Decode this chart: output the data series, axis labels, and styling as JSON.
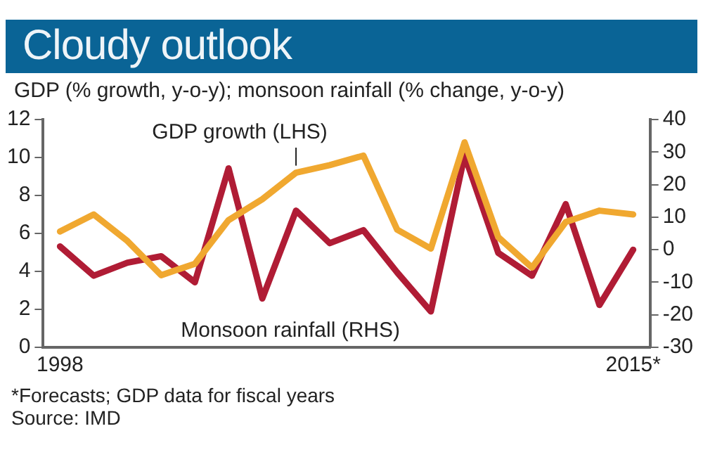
{
  "chart_data": {
    "type": "line",
    "title": "Cloudy outlook",
    "subtitle": "GDP (% growth, y-o-y); monsoon rainfall (% change, y-o-y)",
    "categories": [
      "1998",
      null,
      null,
      null,
      null,
      null,
      null,
      null,
      null,
      null,
      null,
      null,
      null,
      null,
      null,
      null,
      null,
      "2015*"
    ],
    "series": [
      {
        "name": "GDP growth (LHS)",
        "color": "#f0a830",
        "values": [
          6.1,
          7.0,
          5.6,
          3.8,
          4.4,
          6.7,
          7.8,
          9.2,
          9.6,
          10.1,
          6.2,
          5.2,
          10.8,
          5.8,
          4.2,
          6.6,
          7.2,
          7.0
        ]
      },
      {
        "name": "Monsoon rainfall (RHS)",
        "color": "#b01c35",
        "axis": "y2",
        "values": [
          1,
          -8,
          -4,
          -2,
          -10,
          25,
          -15,
          12,
          2,
          6,
          -7,
          -19,
          29,
          -1,
          -8,
          14,
          -17,
          0
        ]
      }
    ],
    "ylim": [
      0,
      12
    ],
    "yticks": [
      0,
      2,
      4,
      6,
      8,
      10,
      12
    ],
    "y2lim": [
      -30,
      40
    ],
    "y2ticks": [
      -30,
      -20,
      -10,
      0,
      10,
      20,
      30,
      40
    ],
    "grid": false,
    "legend": false,
    "marker": "none",
    "line_style": "solid",
    "annotations": [
      "*Forecasts; GDP data for fiscal years",
      "Source: IMD"
    ]
  }
}
